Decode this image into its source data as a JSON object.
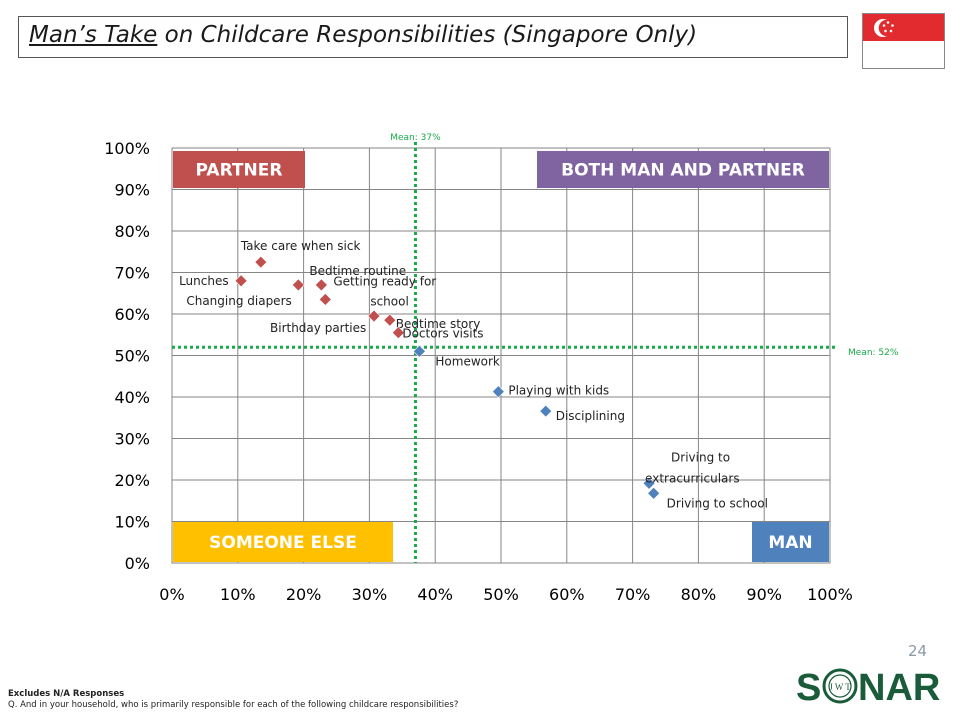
{
  "header": {
    "title_emphasis": "Man’s Take",
    "title_rest": " on Childcare Responsibilities (Singapore Only)"
  },
  "flag": {
    "icon": "singapore-flag-icon",
    "colors": [
      "#e12b2f",
      "#ffffff"
    ]
  },
  "page_number": "24",
  "footer": {
    "note": "Excludes N/A Responses",
    "question": "Q. And in your household, who is primarily responsible for each of the following childcare responsibilities?"
  },
  "logo": {
    "text_left": "S",
    "text_right": "NAR",
    "inner": "J W T",
    "color": "#1a5c3a"
  },
  "chart_data": {
    "type": "scatter",
    "title": "",
    "xlabel": "",
    "ylabel": "",
    "xlim": [
      0,
      100
    ],
    "ylim": [
      0,
      100
    ],
    "x_ticks": [
      "0%",
      "10%",
      "20%",
      "30%",
      "40%",
      "50%",
      "60%",
      "70%",
      "80%",
      "90%",
      "100%"
    ],
    "y_ticks": [
      "0%",
      "10%",
      "20%",
      "30%",
      "40%",
      "50%",
      "60%",
      "70%",
      "80%",
      "90%",
      "100%"
    ],
    "grid": true,
    "mean_x": {
      "value": 37,
      "label": "Mean: 37%"
    },
    "mean_y": {
      "value": 52,
      "label": "Mean: 52%"
    },
    "quadrants": [
      {
        "label": "PARTNER",
        "corner": "top-left",
        "color": "#c0504d"
      },
      {
        "label": "BOTH MAN AND PARTNER",
        "corner": "top-right",
        "color": "#8064a2"
      },
      {
        "label": "SOMEONE ELSE",
        "corner": "bottom-left",
        "color": "#ffc000"
      },
      {
        "label": "MAN",
        "corner": "bottom-right",
        "color": "#4f81bd"
      }
    ],
    "series": [
      {
        "color": "#c0504d",
        "points": [
          {
            "label": "Lunches",
            "x": 10.5,
            "y": 68
          },
          {
            "label": "Take care when sick",
            "x": 13.5,
            "y": 72.5
          },
          {
            "label": "Changing diapers",
            "x": 19.2,
            "y": 67
          },
          {
            "label": "Bedtime routine",
            "x": 22.7,
            "y": 67
          },
          {
            "label": "Getting ready for school",
            "x": 23.3,
            "y": 63.5
          },
          {
            "label": "Birthday parties",
            "x": 30.7,
            "y": 59.5
          },
          {
            "label": "Bedtime story",
            "x": 33.1,
            "y": 58.5
          },
          {
            "label": "Doctors visits",
            "x": 34.4,
            "y": 55.5
          }
        ]
      },
      {
        "color": "#4f81bd",
        "points": [
          {
            "label": "Homework",
            "x": 37.6,
            "y": 51
          },
          {
            "label": "Playing with kids",
            "x": 49.6,
            "y": 41.3
          },
          {
            "label": "Disciplining",
            "x": 56.8,
            "y": 36.6
          },
          {
            "label": "Driving to extracurriculars",
            "x": 72.5,
            "y": 19.2
          },
          {
            "label": "Driving to school",
            "x": 73.2,
            "y": 16.8
          }
        ]
      }
    ]
  }
}
